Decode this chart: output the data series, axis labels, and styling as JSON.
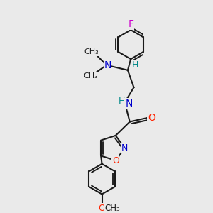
{
  "background_color": "#eaeaea",
  "bond_color": "#1a1a1a",
  "bond_width": 1.5,
  "atoms": {
    "F": {
      "color": "#cc00cc"
    },
    "O": {
      "color": "#ff2200"
    },
    "N": {
      "color": "#0000cc"
    },
    "H": {
      "color": "#008888"
    }
  },
  "figsize": [
    3.0,
    3.0
  ],
  "dpi": 100,
  "xlim": [
    0,
    10
  ],
  "ylim": [
    0,
    10
  ]
}
